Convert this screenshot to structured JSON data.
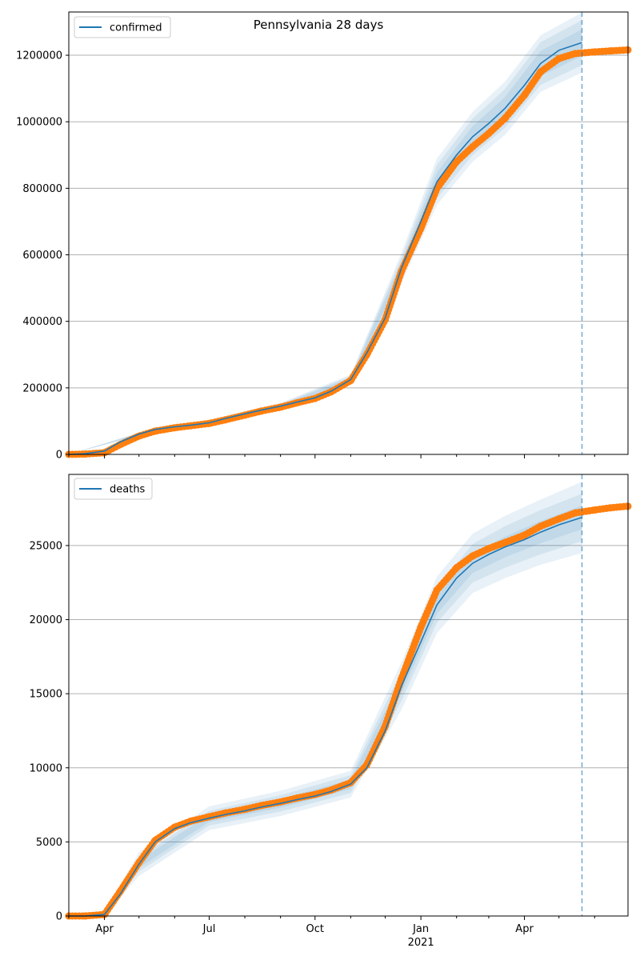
{
  "figure": {
    "title": "Pennsylvania 28 days"
  },
  "colors": {
    "model": "#1f77b4",
    "observed": "#ff7f0e",
    "band": "#1f77b4",
    "grid": "#b0b0b0",
    "forecast_start_line": "#1f77b4"
  },
  "chart_data": [
    {
      "type": "line",
      "title": "Pennsylvania 28 days",
      "xlabel": "",
      "ylabel": "",
      "x_range": [
        "2020-03-01",
        "2021-06-30"
      ],
      "ylim": [
        0,
        1330000
      ],
      "yticks": [
        0,
        200000,
        400000,
        600000,
        800000,
        1000000,
        1200000
      ],
      "ytick_labels": [
        "0",
        "200000",
        "400000",
        "600000",
        "800000",
        "1000000",
        "1200000"
      ],
      "grid": "horizontal",
      "legend": {
        "placement": "top-left",
        "entries": [
          "confirmed"
        ]
      },
      "forecast_start": "2021-05-21",
      "series": [
        {
          "name": "confirmed",
          "kind": "model-median",
          "x": [
            "2020-03-01",
            "2020-03-15",
            "2020-04-01",
            "2020-04-15",
            "2020-05-01",
            "2020-05-15",
            "2020-06-01",
            "2020-06-15",
            "2020-07-01",
            "2020-07-15",
            "2020-08-01",
            "2020-08-15",
            "2020-09-01",
            "2020-09-15",
            "2020-10-01",
            "2020-10-15",
            "2020-11-01",
            "2020-11-15",
            "2020-12-01",
            "2020-12-15",
            "2021-01-01",
            "2021-01-15",
            "2021-02-01",
            "2021-02-15",
            "2021-03-01",
            "2021-03-15",
            "2021-04-01",
            "2021-04-15",
            "2021-05-01",
            "2021-05-21"
          ],
          "values": [
            0,
            2000,
            10000,
            38000,
            61000,
            75000,
            83000,
            88000,
            95000,
            108000,
            122000,
            133000,
            145000,
            157000,
            170000,
            190000,
            225000,
            305000,
            410000,
            560000,
            700000,
            820000,
            900000,
            955000,
            995000,
            1040000,
            1110000,
            1175000,
            1215000,
            1238000
          ]
        },
        {
          "name": "",
          "kind": "observed",
          "x": [
            "2020-03-01",
            "2020-03-15",
            "2020-04-01",
            "2020-04-15",
            "2020-05-01",
            "2020-05-15",
            "2020-06-01",
            "2020-06-15",
            "2020-07-01",
            "2020-07-15",
            "2020-08-01",
            "2020-08-15",
            "2020-09-01",
            "2020-09-15",
            "2020-10-01",
            "2020-10-15",
            "2020-11-01",
            "2020-11-15",
            "2020-12-01",
            "2020-12-15",
            "2021-01-01",
            "2021-01-15",
            "2021-02-01",
            "2021-02-15",
            "2021-03-01",
            "2021-03-15",
            "2021-04-01",
            "2021-04-15",
            "2021-05-01",
            "2021-05-15",
            "2021-06-01",
            "2021-06-15",
            "2021-06-30"
          ],
          "values": [
            0,
            1000,
            5000,
            30000,
            55000,
            70000,
            80000,
            86000,
            93000,
            104000,
            118000,
            130000,
            142000,
            155000,
            168000,
            188000,
            222000,
            300000,
            405000,
            550000,
            680000,
            800000,
            880000,
            925000,
            965000,
            1010000,
            1080000,
            1150000,
            1190000,
            1205000,
            1210000,
            1213000,
            1216000
          ]
        }
      ],
      "band_dates": [
        "2020-03-01",
        "2020-05-01",
        "2020-07-01",
        "2020-09-01",
        "2020-11-01",
        "2020-12-15",
        "2021-01-15",
        "2021-02-15",
        "2021-03-15",
        "2021-04-15",
        "2021-05-21"
      ],
      "band_center": [
        0,
        61000,
        95000,
        145000,
        225000,
        560000,
        820000,
        955000,
        1040000,
        1175000,
        1238000
      ],
      "band_halfwidths": [
        [
          0,
          2000,
          3000,
          4000,
          6000,
          18000,
          28000,
          32000,
          34000,
          38000,
          40000
        ],
        [
          0,
          3500,
          5000,
          7000,
          11000,
          32000,
          50000,
          55000,
          58000,
          64000,
          68000
        ],
        [
          0,
          5000,
          7500,
          10000,
          15000,
          45000,
          70000,
          75000,
          80000,
          85000,
          90000
        ]
      ]
    },
    {
      "type": "line",
      "title": "",
      "xlabel": "",
      "ylabel": "",
      "x_range": [
        "2020-03-01",
        "2021-06-30"
      ],
      "ylim": [
        0,
        29800
      ],
      "yticks": [
        0,
        5000,
        10000,
        15000,
        20000,
        25000
      ],
      "ytick_labels": [
        "0",
        "5000",
        "10000",
        "15000",
        "20000",
        "25000"
      ],
      "grid": "horizontal",
      "legend": {
        "placement": "top-left",
        "entries": [
          "deaths"
        ]
      },
      "forecast_start": "2021-05-21",
      "xticks": [
        "Apr",
        "Jul",
        "Oct",
        "Jan",
        "Apr"
      ],
      "xticks_year_label": "2021",
      "series": [
        {
          "name": "deaths",
          "kind": "model-median",
          "x": [
            "2020-03-01",
            "2020-03-15",
            "2020-04-01",
            "2020-04-15",
            "2020-05-01",
            "2020-05-15",
            "2020-06-01",
            "2020-06-15",
            "2020-07-01",
            "2020-07-15",
            "2020-08-01",
            "2020-08-15",
            "2020-09-01",
            "2020-09-15",
            "2020-10-01",
            "2020-10-15",
            "2020-11-01",
            "2020-11-15",
            "2020-12-01",
            "2020-12-15",
            "2021-01-01",
            "2021-01-15",
            "2021-02-01",
            "2021-02-15",
            "2021-03-01",
            "2021-03-15",
            "2021-04-01",
            "2021-04-15",
            "2021-05-01",
            "2021-05-21"
          ],
          "values": [
            0,
            0,
            100,
            1500,
            3500,
            5000,
            5900,
            6300,
            6600,
            6850,
            7100,
            7350,
            7600,
            7850,
            8100,
            8400,
            8900,
            10000,
            12500,
            15500,
            18500,
            21000,
            22800,
            23800,
            24400,
            24900,
            25400,
            25900,
            26400,
            26900
          ]
        },
        {
          "name": "",
          "kind": "observed",
          "x": [
            "2020-03-01",
            "2020-03-15",
            "2020-04-01",
            "2020-04-15",
            "2020-05-01",
            "2020-05-15",
            "2020-06-01",
            "2020-06-15",
            "2020-07-01",
            "2020-07-15",
            "2020-08-01",
            "2020-08-15",
            "2020-09-01",
            "2020-09-15",
            "2020-10-01",
            "2020-10-15",
            "2020-11-01",
            "2020-11-15",
            "2020-12-01",
            "2020-12-15",
            "2021-01-01",
            "2021-01-15",
            "2021-02-01",
            "2021-02-15",
            "2021-03-01",
            "2021-03-15",
            "2021-04-01",
            "2021-04-15",
            "2021-05-01",
            "2021-05-15",
            "2021-06-01",
            "2021-06-15",
            "2021-06-30"
          ],
          "values": [
            0,
            0,
            100,
            1700,
            3600,
            5100,
            6000,
            6400,
            6700,
            6950,
            7200,
            7450,
            7700,
            7950,
            8200,
            8500,
            9000,
            10200,
            12800,
            16000,
            19500,
            22000,
            23500,
            24300,
            24800,
            25200,
            25700,
            26300,
            26800,
            27200,
            27400,
            27550,
            27650
          ]
        }
      ],
      "band_dates": [
        "2020-03-01",
        "2020-04-01",
        "2020-05-01",
        "2020-07-01",
        "2020-09-01",
        "2020-11-01",
        "2020-12-15",
        "2021-01-15",
        "2021-02-15",
        "2021-03-15",
        "2021-04-15",
        "2021-05-21"
      ],
      "band_center": [
        0,
        100,
        3500,
        6600,
        7600,
        8900,
        15500,
        21000,
        23800,
        24900,
        25900,
        26900
      ],
      "band_halfwidths": [
        [
          0,
          50,
          250,
          250,
          300,
          320,
          500,
          600,
          650,
          700,
          750,
          800
        ],
        [
          0,
          100,
          500,
          500,
          550,
          600,
          1000,
          1200,
          1300,
          1400,
          1500,
          1600
        ],
        [
          0,
          150,
          800,
          800,
          850,
          900,
          1600,
          1900,
          2000,
          2100,
          2200,
          2400
        ]
      ]
    }
  ],
  "xaxis": {
    "tick_dates": [
      "2020-04-01",
      "2020-07-01",
      "2020-10-01",
      "2021-01-01",
      "2021-04-01"
    ],
    "tick_labels": [
      "Apr",
      "Jul",
      "Oct",
      "Jan",
      "Apr"
    ],
    "year_label": "2021",
    "year_label_date": "2021-01-01"
  }
}
